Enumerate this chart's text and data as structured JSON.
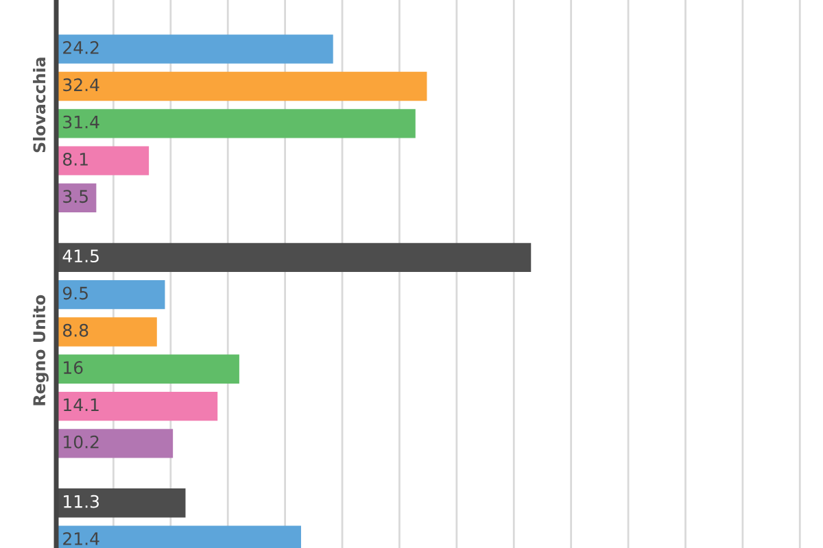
{
  "chart_data": {
    "type": "bar",
    "orientation": "horizontal",
    "categories": [
      "Slovacchia",
      "Regno Unito",
      null
    ],
    "series": [
      {
        "color": "#4d4d4d",
        "values": [
          null,
          41.5,
          11.3
        ]
      },
      {
        "color": "#5da5da",
        "values": [
          24.2,
          9.5,
          21.4
        ]
      },
      {
        "color": "#faa43a",
        "values": [
          32.4,
          8.8,
          null
        ]
      },
      {
        "color": "#60bd68",
        "values": [
          31.4,
          16,
          null
        ]
      },
      {
        "color": "#f17cb0",
        "values": [
          8.1,
          14.1,
          null
        ]
      },
      {
        "color": "#b276b2",
        "values": [
          3.5,
          10.2,
          null
        ]
      }
    ],
    "xticks": [
      {
        "value": 0,
        "label": null
      },
      {
        "value": 5,
        "label": null
      },
      {
        "value": 10,
        "label": null
      },
      {
        "value": 15,
        "label": null
      },
      {
        "value": 20,
        "label": null
      },
      {
        "value": 25,
        "label": null
      },
      {
        "value": 30,
        "label": null
      },
      {
        "value": 35,
        "label": null
      },
      {
        "value": 40,
        "label": null
      },
      {
        "value": 45,
        "label": null
      },
      {
        "value": 50,
        "label": null
      },
      {
        "value": 55,
        "label": null
      },
      {
        "value": 60,
        "label": null
      },
      {
        "value": 65,
        "label": null
      }
    ],
    "grid": "x",
    "data_labels": true,
    "tick_labels": "y"
  }
}
